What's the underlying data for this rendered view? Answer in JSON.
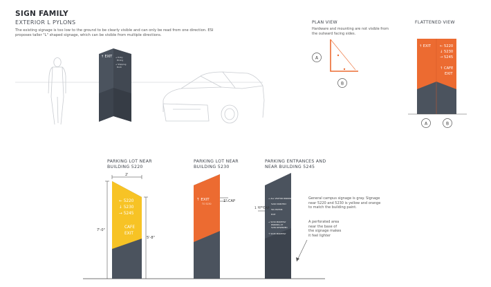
{
  "header": {
    "title": "SIGN FAMILY",
    "subtitle": "EXTERIOR L PYLONS",
    "description": "The existing signage is too low to the ground to be clearly visible and can only be read from one direction. ESI proposes taller \"L\" shaped signage, which can be visible from multiple directions."
  },
  "plan_view": {
    "title": "PLAN VIEW",
    "caption": "Hardware and mounting are not visible from the outward facing sides.",
    "markers": [
      "A",
      "B"
    ]
  },
  "flattened_view": {
    "title": "FLATTENED VIEW",
    "left_panel": "↑ EXIT",
    "right_panel": [
      "← 5220",
      "↓ 5230",
      "→ 5245",
      "",
      "↑ CAFE",
      "EXIT"
    ],
    "markers": [
      "A",
      "B"
    ]
  },
  "hero_sign": {
    "label": "↑ EXIT",
    "side_lines": [
      "→ Entry",
      "Dining",
      "→ Shipping",
      "Dock"
    ]
  },
  "variants": [
    {
      "heading": "PARKING LOT NEAR\nBUILDING 5220",
      "lines": [
        "← 5220",
        "↓ 5230",
        "→ 5245"
      ],
      "lower_lines": [
        "CAFE",
        "EXIT"
      ]
    },
    {
      "heading": "PARKING LOT NEAR\nBUILDING 5230",
      "exit": "↑ EXIT",
      "sub": "TO 5230",
      "cap_label": "1\" CAP"
    },
    {
      "heading": "PARKING ENTRANCES AND\nNEAR BUILDING 5245",
      "cap_label": "1 ½\"\nCAP",
      "lines": [
        "→ ALL VISITOR PARKING",
        "5220 MONTHLY",
        "5D-VISITOR",
        "EXIT",
        "",
        "→ 5230 MONTHLY",
        "PARKING AT",
        "5230 RESERVED",
        "",
        "↑ 5245 MONTHLY"
      ]
    }
  ],
  "dimensions": {
    "top_width": "2'",
    "total_height": "7'-0\"",
    "panel_height": "5'-8\""
  },
  "notes": {
    "colors": "General campus signage is gray. Signage near 5220 and 5230 is yellow and orange to match the building paint.",
    "perforated": "A perforated area\nnear the base of\nthe signage makes\nit feel lighter"
  },
  "colors": {
    "gray": "#4b535e",
    "gray_dark": "#3d444e",
    "orange": "#ec6b31",
    "yellow": "#f7c325"
  }
}
